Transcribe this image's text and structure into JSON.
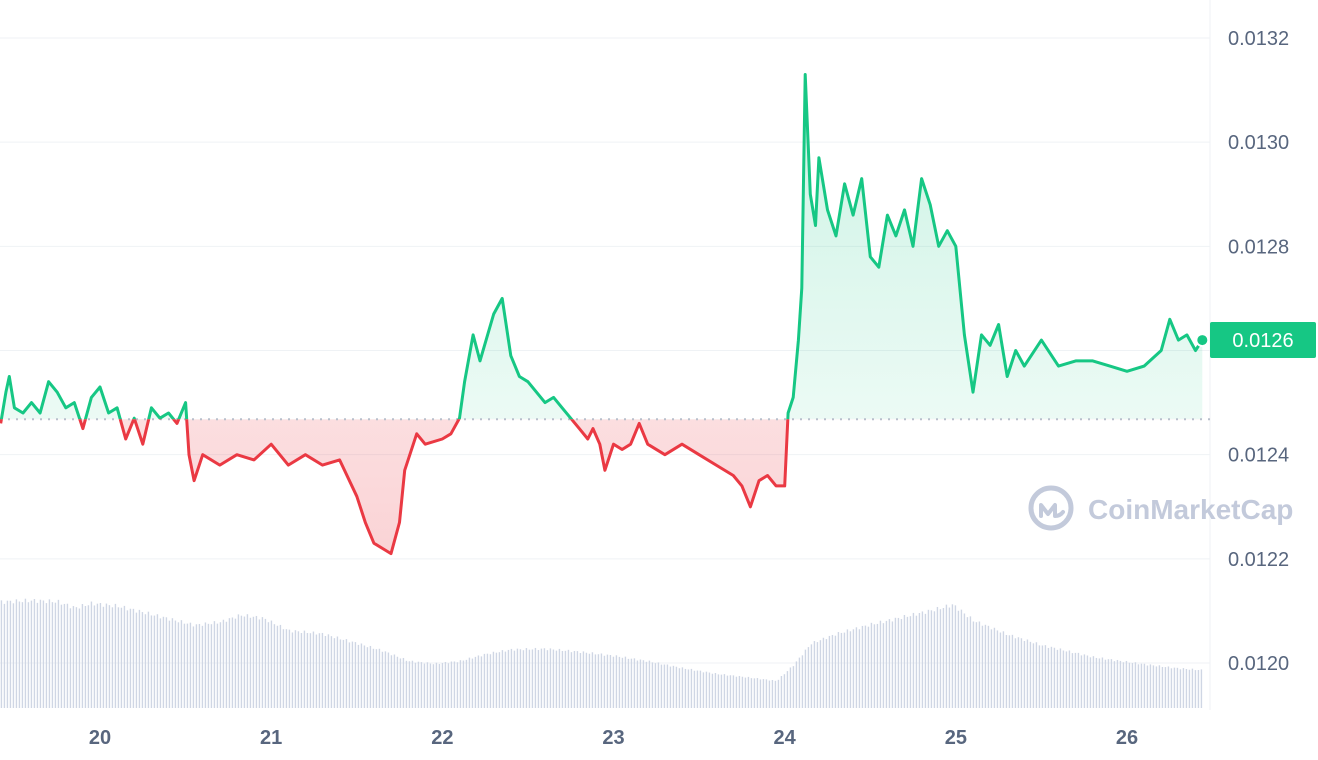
{
  "chart_data": {
    "type": "area",
    "y_ticks": [
      "0.0132",
      "0.0130",
      "0.0128",
      "0.0126",
      "0.0124",
      "0.0122",
      "0.0120"
    ],
    "y_tick_values": [
      0.0132,
      0.013,
      0.0128,
      0.0126,
      0.0124,
      0.0122,
      0.012
    ],
    "x_ticks": [
      "20",
      "21",
      "22",
      "23",
      "24",
      "25",
      "26"
    ],
    "ylim": [
      0.01192,
      0.01324
    ],
    "xlim": [
      19.42,
      26.44
    ],
    "baseline": 0.012468,
    "last_price_label": "0.0126",
    "last_price": 0.012624,
    "grid": "horizontal",
    "colors": {
      "up": "#16c784",
      "down": "#ea3943",
      "grid": "#eff2f5",
      "axis_text": "#58667e",
      "volume": "#cfd6e4",
      "watermark": "#c3cadb"
    },
    "price_series": {
      "x": [
        19.42,
        19.45,
        19.47,
        19.5,
        19.55,
        19.6,
        19.65,
        19.7,
        19.75,
        19.8,
        19.85,
        19.9,
        19.95,
        20.0,
        20.05,
        20.1,
        20.15,
        20.2,
        20.25,
        20.3,
        20.35,
        20.4,
        20.45,
        20.5,
        20.52,
        20.55,
        20.6,
        20.7,
        20.8,
        20.9,
        21.0,
        21.1,
        21.2,
        21.3,
        21.4,
        21.5,
        21.55,
        21.6,
        21.65,
        21.7,
        21.75,
        21.78,
        21.85,
        21.9,
        22.0,
        22.05,
        22.1,
        22.13,
        22.18,
        22.22,
        22.3,
        22.35,
        22.4,
        22.45,
        22.5,
        22.55,
        22.6,
        22.65,
        22.7,
        22.75,
        22.8,
        22.85,
        22.88,
        22.92,
        22.95,
        23.0,
        23.05,
        23.1,
        23.15,
        23.2,
        23.3,
        23.4,
        23.5,
        23.6,
        23.7,
        23.75,
        23.8,
        23.85,
        23.9,
        23.95,
        24.0,
        24.02,
        24.05,
        24.08,
        24.1,
        24.12,
        24.15,
        24.18,
        24.2,
        24.25,
        24.3,
        24.35,
        24.4,
        24.45,
        24.5,
        24.55,
        24.6,
        24.65,
        24.7,
        24.75,
        24.8,
        24.85,
        24.9,
        24.95,
        25.0,
        25.05,
        25.1,
        25.15,
        25.2,
        25.25,
        25.3,
        25.35,
        25.4,
        25.5,
        25.6,
        25.7,
        25.8,
        25.9,
        26.0,
        26.1,
        26.2,
        26.25,
        26.3,
        26.35,
        26.4,
        26.44
      ],
      "y": [
        0.01246,
        0.01252,
        0.01255,
        0.01249,
        0.01248,
        0.0125,
        0.01248,
        0.01254,
        0.01252,
        0.01249,
        0.0125,
        0.01245,
        0.01251,
        0.01253,
        0.01248,
        0.01249,
        0.01243,
        0.01247,
        0.01242,
        0.01249,
        0.01247,
        0.01248,
        0.01246,
        0.0125,
        0.0124,
        0.01235,
        0.0124,
        0.01238,
        0.0124,
        0.01239,
        0.01242,
        0.01238,
        0.0124,
        0.01238,
        0.01239,
        0.01232,
        0.01227,
        0.01223,
        0.01222,
        0.01221,
        0.01227,
        0.01237,
        0.01244,
        0.01242,
        0.01243,
        0.01244,
        0.01247,
        0.01254,
        0.01263,
        0.01258,
        0.01267,
        0.0127,
        0.01259,
        0.01255,
        0.01254,
        0.01252,
        0.0125,
        0.01251,
        0.01249,
        0.01247,
        0.01245,
        0.01243,
        0.01245,
        0.01242,
        0.01237,
        0.01242,
        0.01241,
        0.01242,
        0.01246,
        0.01242,
        0.0124,
        0.01242,
        0.0124,
        0.01238,
        0.01236,
        0.01234,
        0.0123,
        0.01235,
        0.01236,
        0.01234,
        0.01234,
        0.01248,
        0.01251,
        0.01262,
        0.01272,
        0.01313,
        0.0129,
        0.01284,
        0.01297,
        0.01287,
        0.01282,
        0.01292,
        0.01286,
        0.01293,
        0.01278,
        0.01276,
        0.01286,
        0.01282,
        0.01287,
        0.0128,
        0.01293,
        0.01288,
        0.0128,
        0.01283,
        0.0128,
        0.01263,
        0.01252,
        0.01263,
        0.01261,
        0.01265,
        0.01255,
        0.0126,
        0.01257,
        0.01262,
        0.01257,
        0.01258,
        0.01258,
        0.01257,
        0.01256,
        0.01257,
        0.0126,
        0.01266,
        0.01262,
        0.01263,
        0.0126,
        0.01262
      ]
    },
    "volume_series": {
      "x": [
        19.42,
        19.6,
        19.75,
        19.85,
        19.95,
        20.1,
        20.25,
        20.4,
        20.55,
        20.7,
        20.82,
        20.95,
        21.1,
        21.3,
        21.5,
        21.65,
        21.8,
        21.95,
        22.1,
        22.25,
        22.4,
        22.6,
        22.8,
        23.0,
        23.2,
        23.4,
        23.6,
        23.8,
        23.95,
        24.05,
        24.15,
        24.3,
        24.5,
        24.7,
        24.9,
        24.98,
        25.1,
        25.3,
        25.5,
        25.8,
        26.1,
        26.3,
        26.44
      ],
      "h": [
        0.98,
        1.0,
        1.0,
        0.95,
        1.0,
        0.98,
        0.92,
        0.85,
        0.78,
        0.8,
        0.86,
        0.83,
        0.72,
        0.7,
        0.62,
        0.55,
        0.45,
        0.42,
        0.44,
        0.5,
        0.54,
        0.55,
        0.53,
        0.5,
        0.45,
        0.38,
        0.32,
        0.28,
        0.25,
        0.4,
        0.6,
        0.7,
        0.8,
        0.88,
        0.95,
        0.98,
        0.82,
        0.68,
        0.58,
        0.48,
        0.42,
        0.38,
        0.36
      ]
    }
  },
  "watermark": {
    "text": "CoinMarketCap",
    "icon": "coinmarketcap-logo-icon"
  }
}
